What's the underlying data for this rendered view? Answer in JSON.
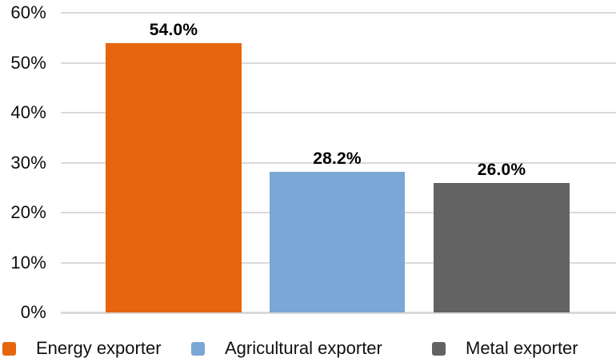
{
  "chart_data": {
    "type": "bar",
    "title": "",
    "categories": [
      "Energy exporter",
      "Agricultural exporter",
      "Metal exporter"
    ],
    "values": [
      54.0,
      28.2,
      26.0
    ],
    "value_labels": [
      "54.0%",
      "28.2%",
      "26.0%"
    ],
    "bar_colors": [
      "#E7650E",
      "#7AA7D6",
      "#636363"
    ],
    "ylim": [
      0,
      60
    ],
    "yticks": [
      0,
      10,
      20,
      30,
      40,
      50,
      60
    ],
    "ytick_labels": [
      "0%",
      "10%",
      "20%",
      "30%",
      "40%",
      "50%",
      "60%"
    ],
    "xlabel": "",
    "ylabel": "",
    "grid": "horizontal",
    "legend": {
      "position": "bottom",
      "items": [
        {
          "label": "Energy exporter",
          "color": "#E7650E"
        },
        {
          "label": "Agricultural exporter",
          "color": "#7AA7D6"
        },
        {
          "label": "Metal exporter",
          "color": "#636363"
        }
      ]
    }
  },
  "styles": {
    "background": "#FFFFFF",
    "grid_color": "#D9D9D9",
    "tick_text_color": "#0D0D0D",
    "value_text_color": "#000000"
  }
}
